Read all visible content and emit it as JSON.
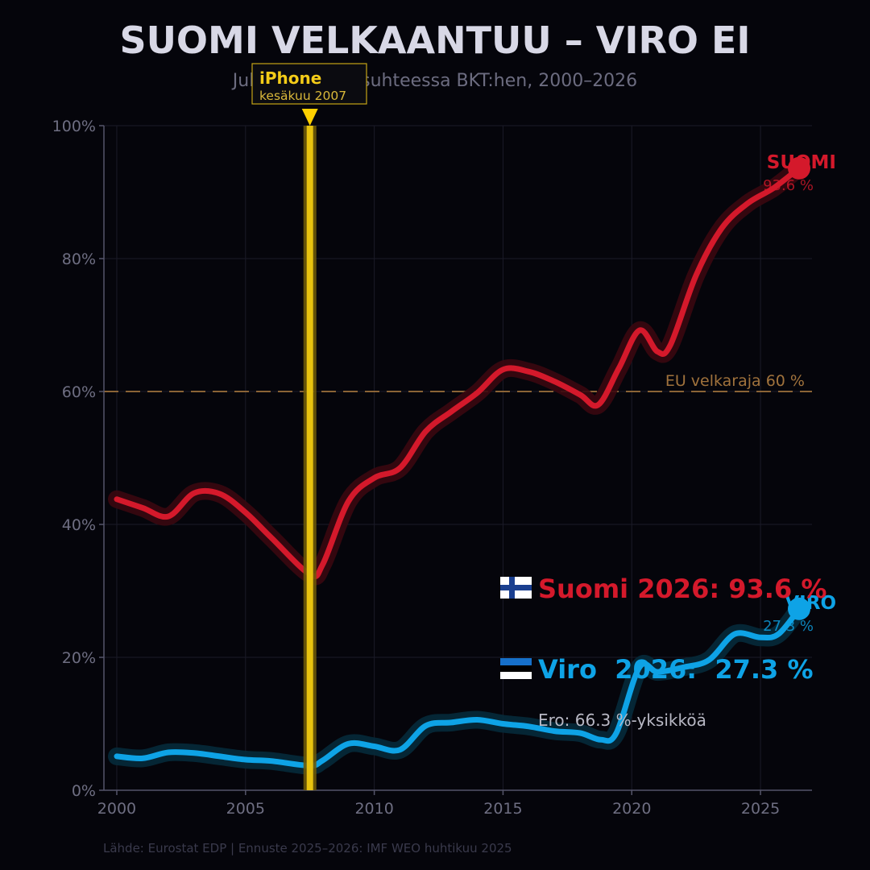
{
  "chart_data": {
    "type": "line",
    "title": "SUOMI VELKAANTUU – VIRO EI",
    "subtitle": "Julkinen velka suhteessa BKT:hen, 2000–2026",
    "xlabel": "",
    "ylabel": "",
    "xlim": [
      1999.5,
      2027.0
    ],
    "ylim": [
      0,
      100
    ],
    "x_ticks": [
      2000,
      2005,
      2010,
      2015,
      2020,
      2025
    ],
    "y_ticks": [
      0,
      20,
      40,
      60,
      80,
      100
    ],
    "y_tick_suffix": "%",
    "grid": true,
    "series": [
      {
        "name": "SUOMI",
        "color": "#d4192b",
        "x": [
          2000,
          2001,
          2002,
          2003,
          2004,
          2005,
          2006,
          2007.5,
          2008,
          2009,
          2010,
          2011,
          2012,
          2013,
          2014,
          2015,
          2016,
          2017,
          2018,
          2018.7,
          2019.5,
          2020.3,
          2021,
          2021.5,
          2022.5,
          2023.5,
          2024.5,
          2025.5,
          2026.5
        ],
        "values": [
          43.8,
          42.5,
          41.2,
          44.7,
          44.6,
          41.8,
          38.0,
          32.5,
          34.0,
          43.5,
          47.0,
          48.5,
          54.0,
          57.0,
          59.8,
          63.3,
          63.0,
          61.5,
          59.5,
          58.0,
          63.5,
          69.2,
          66.0,
          67.0,
          77.5,
          84.6,
          88.3,
          90.6,
          93.6
        ]
      },
      {
        "name": "VIRO",
        "color": "#0ea3e6",
        "x": [
          2000,
          2001,
          2002,
          2003,
          2004,
          2005,
          2006,
          2007.5,
          2008,
          2009,
          2010,
          2011,
          2012,
          2013,
          2014,
          2015,
          2016,
          2017,
          2018,
          2018.8,
          2019.4,
          2020.3,
          2021,
          2022,
          2023,
          2024,
          2025,
          2025.7,
          2026.5
        ],
        "values": [
          5.1,
          4.8,
          5.7,
          5.6,
          5.1,
          4.6,
          4.4,
          3.7,
          4.5,
          7.0,
          6.6,
          6.1,
          9.7,
          10.2,
          10.6,
          10.0,
          9.6,
          8.9,
          8.6,
          7.6,
          8.6,
          18.5,
          17.8,
          18.5,
          19.6,
          23.5,
          23.0,
          23.5,
          27.3
        ]
      }
    ],
    "end_labels": [
      {
        "series": "SUOMI",
        "name": "SUOMI",
        "value_text": "93.6 %"
      },
      {
        "series": "VIRO",
        "name": "VIRO",
        "value_text": "27.3 %"
      }
    ],
    "reference_line": {
      "value": 60,
      "label": "EU velkaraja 60 %",
      "color": "#a0723c"
    },
    "event_marker": {
      "x": 2007.5,
      "label": "iPhone",
      "sublabel": "kesäkuu 2007",
      "color": "#e8c30f"
    },
    "summary": {
      "suomi_text": "Suomi 2026: 93.6 %",
      "viro_text": "Viro  2026:  27.3 %",
      "difference_text": "Ero: 66.3 %-yksikköä"
    },
    "source": "Lähde: Eurostat EDP | Ennuste 2025–2026: IMF WEO huhtikuu 2025"
  }
}
